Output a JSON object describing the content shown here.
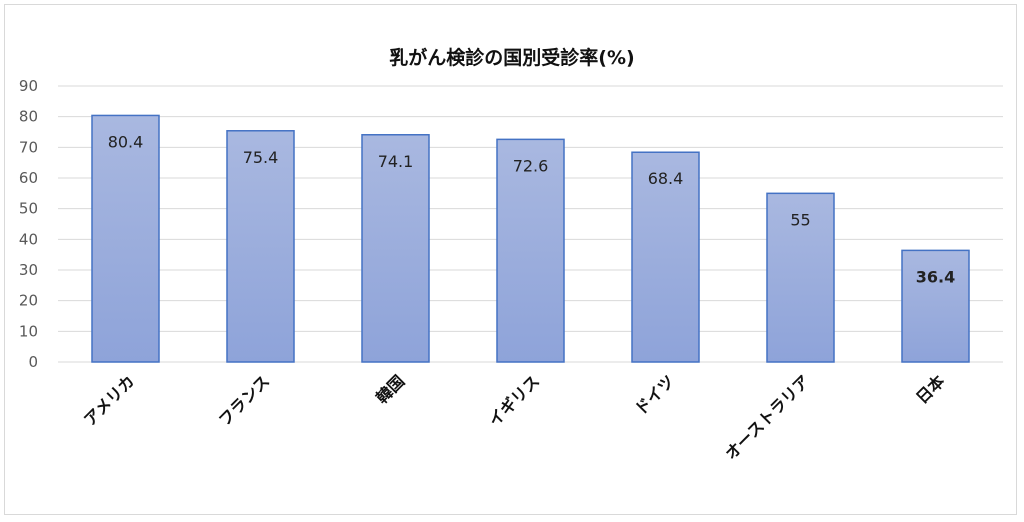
{
  "chart_data": {
    "type": "bar",
    "title": "乳がん検診の国別受診率(%)",
    "categories": [
      "アメリカ",
      "フランス",
      "韓国",
      "イギリス",
      "ドイツ",
      "オーストラリア",
      "日本"
    ],
    "values": [
      80.4,
      75.4,
      74.1,
      72.6,
      68.4,
      55,
      36.4
    ],
    "data_labels": [
      "80.4",
      "75.4",
      "74.1",
      "72.6",
      "68.4",
      "55",
      "36.4"
    ],
    "bold_labels": [
      false,
      false,
      false,
      false,
      false,
      false,
      true
    ],
    "ylim": [
      0,
      90
    ],
    "yticks": [
      "0",
      "10",
      "20",
      "30",
      "40",
      "50",
      "60",
      "70",
      "80",
      "90"
    ],
    "grid": true,
    "legend": "none",
    "colors": {
      "bar_top": "#a9b8e0",
      "bar_bottom": "#8ea3d9",
      "bar_edge": "#4472c4"
    }
  }
}
